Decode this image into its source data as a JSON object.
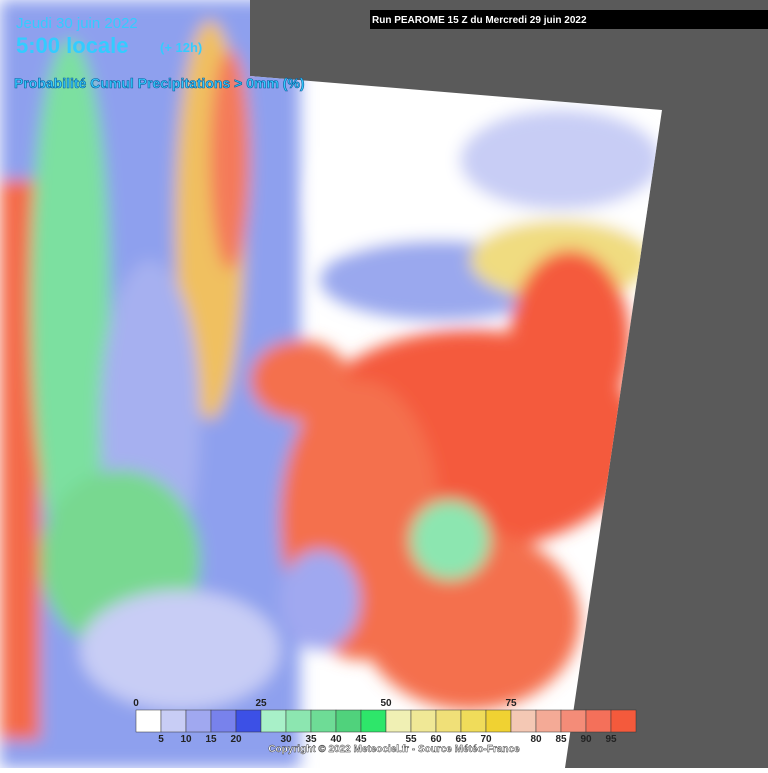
{
  "header": {
    "date": "Jeudi 30 juin 2022",
    "time": "5:00 locale",
    "lead": "(+ 12h)",
    "run": "Run PEAROME 15 Z du Mercredi 29 juin 2022",
    "product": "Probabilité Cumul Precipitations > 0mm (%)"
  },
  "legend": {
    "colors": [
      "#ffffff",
      "#c8cdf5",
      "#a0a8f0",
      "#7882ec",
      "#3c50e6",
      "#a8f0c8",
      "#8ce6b0",
      "#6edc96",
      "#50d27c",
      "#2ee66a",
      "#f0f0b4",
      "#f0e896",
      "#f0e078",
      "#f0dc5a",
      "#f0d232",
      "#f4c8b4",
      "#f4aa96",
      "#f48c78",
      "#f4705a",
      "#f45a3c"
    ],
    "top_labels": [
      0,
      25,
      50,
      75
    ],
    "bottom_labels": [
      5,
      10,
      15,
      20,
      30,
      35,
      40,
      45,
      55,
      60,
      65,
      70,
      80,
      85,
      90,
      95
    ]
  },
  "footer": {
    "copyright": "Copyright © 2022 Meteociel.fr - Source Météo-France"
  }
}
